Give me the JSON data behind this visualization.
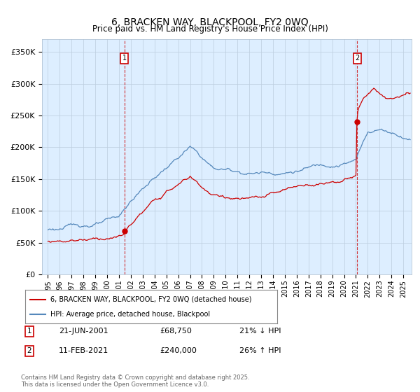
{
  "title": "6, BRACKEN WAY, BLACKPOOL, FY2 0WQ",
  "subtitle": "Price paid vs. HM Land Registry's House Price Index (HPI)",
  "background_color": "#ffffff",
  "plot_bg_color": "#ddeeff",
  "grid_color": "#bbccdd",
  "red_color": "#cc0000",
  "blue_color": "#5588bb",
  "annotation1_date": "21-JUN-2001",
  "annotation1_price": "£68,750",
  "annotation1_hpi": "21% ↓ HPI",
  "annotation1_year": 2001.47,
  "annotation1_value": 68750,
  "annotation2_date": "11-FEB-2021",
  "annotation2_price": "£240,000",
  "annotation2_hpi": "26% ↑ HPI",
  "annotation2_year": 2021.12,
  "annotation2_value": 240000,
  "legend_label_red": "6, BRACKEN WAY, BLACKPOOL, FY2 0WQ (detached house)",
  "legend_label_blue": "HPI: Average price, detached house, Blackpool",
  "footer": "Contains HM Land Registry data © Crown copyright and database right 2025.\nThis data is licensed under the Open Government Licence v3.0.",
  "ylim": [
    0,
    370000
  ],
  "xlim_start": 1994.5,
  "xlim_end": 2025.7
}
